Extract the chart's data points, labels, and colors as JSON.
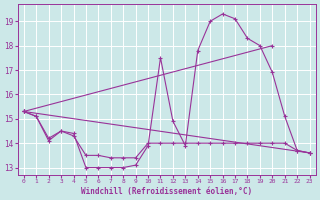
{
  "xlabel": "Windchill (Refroidissement éolien,°C)",
  "background_color": "#cce8e8",
  "grid_color": "#ffffff",
  "line_color": "#993399",
  "xlim": [
    -0.5,
    23.5
  ],
  "ylim": [
    12.7,
    19.7
  ],
  "yticks": [
    13,
    14,
    15,
    16,
    17,
    18,
    19
  ],
  "xticks": [
    0,
    1,
    2,
    3,
    4,
    5,
    6,
    7,
    8,
    9,
    10,
    11,
    12,
    13,
    14,
    15,
    16,
    17,
    18,
    19,
    20,
    21,
    22,
    23
  ],
  "series": [
    {
      "x": [
        0,
        1,
        2,
        3,
        4,
        5,
        6,
        7,
        8,
        9,
        10,
        11,
        12,
        13,
        14,
        15,
        16,
        17,
        18,
        19,
        20,
        21,
        22,
        23
      ],
      "y": [
        15.3,
        15.1,
        14.1,
        14.5,
        14.4,
        13.0,
        13.0,
        13.0,
        13.0,
        13.1,
        13.9,
        17.5,
        14.9,
        13.9,
        17.8,
        19.0,
        19.3,
        19.1,
        18.3,
        18.0,
        16.9,
        15.1,
        13.7,
        13.6
      ]
    },
    {
      "x": [
        0,
        1,
        2,
        3,
        4,
        5,
        6,
        7,
        8,
        9,
        10,
        11,
        12,
        13,
        14,
        15,
        16,
        17,
        18,
        19,
        20,
        21,
        22,
        23
      ],
      "y": [
        15.3,
        15.1,
        14.2,
        14.5,
        14.3,
        13.5,
        13.5,
        13.4,
        13.4,
        13.4,
        14.0,
        14.0,
        14.0,
        14.0,
        14.0,
        14.0,
        14.0,
        14.0,
        14.0,
        14.0,
        14.0,
        14.0,
        13.7,
        13.6
      ]
    },
    {
      "comment": "straight line from (0, 15.3) to (23, 13.6)",
      "x": [
        0,
        23
      ],
      "y": [
        15.3,
        13.6
      ]
    },
    {
      "comment": "straight line from (0, 15.3) to (20, 18.0)",
      "x": [
        0,
        20
      ],
      "y": [
        15.3,
        18.0
      ]
    }
  ]
}
